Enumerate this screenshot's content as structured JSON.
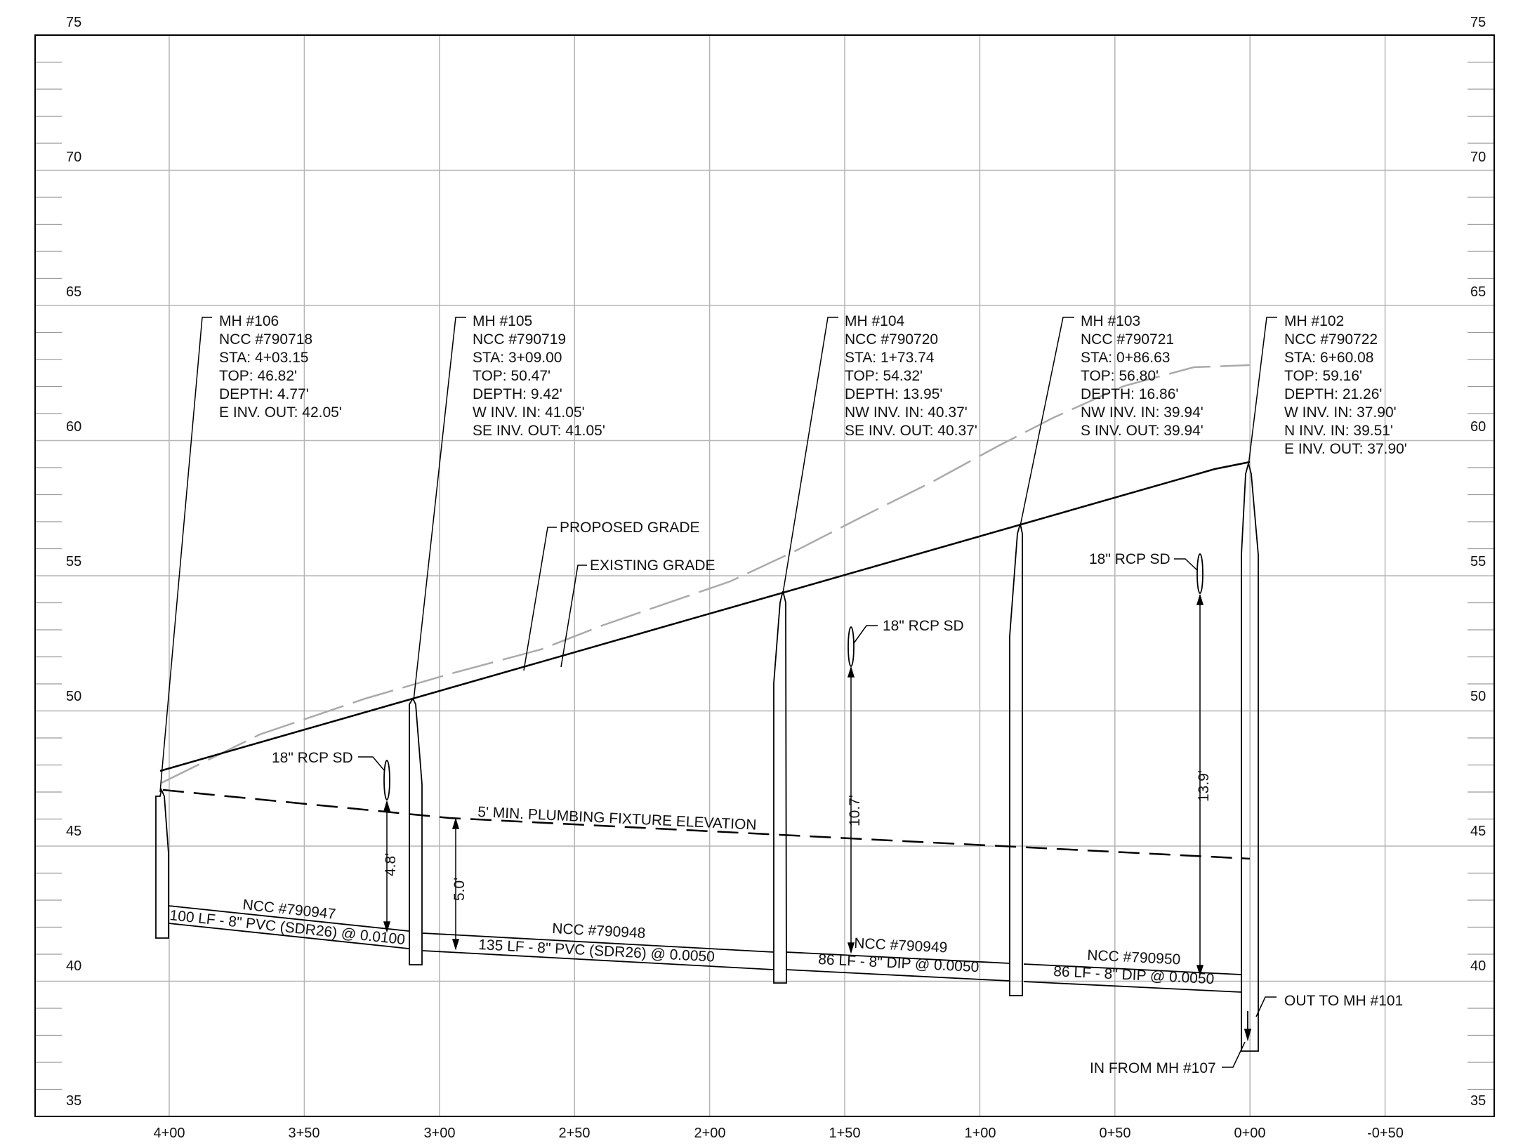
{
  "axes": {
    "y_labels": [
      "75",
      "70",
      "65",
      "60",
      "55",
      "50",
      "45",
      "40",
      "35"
    ],
    "y_range": [
      35,
      75
    ],
    "x_labels": [
      "4+00",
      "3+50",
      "3+00",
      "2+50",
      "2+00",
      "1+50",
      "1+00",
      "0+50",
      "0+00",
      "-0+50"
    ]
  },
  "colors": {
    "ink": "#000000",
    "grid": "#b5b5b5",
    "existing_grade": "#aaaaaa"
  },
  "manholes": [
    {
      "id": "mh106",
      "lines": [
        "MH #106",
        "NCC #790718",
        "STA: 4+03.15",
        "TOP: 46.82'",
        "DEPTH: 4.77'",
        "E INV. OUT: 42.05'"
      ]
    },
    {
      "id": "mh105",
      "lines": [
        "MH #105",
        "NCC #790719",
        "STA: 3+09.00",
        "TOP: 50.47'",
        "DEPTH: 9.42'",
        "W INV. IN: 41.05'",
        "SE INV. OUT: 41.05'"
      ]
    },
    {
      "id": "mh104",
      "lines": [
        "MH #104",
        "NCC #790720",
        "STA: 1+73.74",
        "TOP: 54.32'",
        "DEPTH: 13.95'",
        "NW INV. IN: 40.37'",
        "SE INV. OUT: 40.37'"
      ]
    },
    {
      "id": "mh103",
      "lines": [
        "MH #103",
        "NCC #790721",
        "STA: 0+86.63",
        "TOP: 56.80'",
        "DEPTH: 16.86'",
        "NW INV. IN: 39.94'",
        "S INV. OUT: 39.94'"
      ]
    },
    {
      "id": "mh102",
      "lines": [
        "MH #102",
        "NCC #790722",
        "STA: 6+60.08",
        "TOP: 59.16'",
        "DEPTH: 21.26'",
        "W INV. IN: 37.90'",
        "N INV. IN: 39.51'",
        "E INV. OUT: 37.90'"
      ]
    }
  ],
  "grade_labels": {
    "proposed": "PROPOSED GRADE",
    "existing": "EXISTING GRADE"
  },
  "plumbing_label": "5' MIN. PLUMBING FIXTURE ELEVATION",
  "storm_drains": [
    {
      "id": "sd1",
      "label": "18\" RCP SD"
    },
    {
      "id": "sd2",
      "label": "18\" RCP SD"
    },
    {
      "id": "sd3",
      "label": "18\" RCP SD"
    }
  ],
  "dimensions": [
    "4.8'",
    "5.0'",
    "10.7'",
    "13.9'"
  ],
  "pipes": [
    {
      "id": "p1",
      "ncc": "NCC #790947",
      "spec": "100 LF - 8\" PVC (SDR26) @ 0.0100"
    },
    {
      "id": "p2",
      "ncc": "NCC #790948",
      "spec": "135 LF - 8\" PVC (SDR26) @ 0.0050"
    },
    {
      "id": "p3",
      "ncc": "NCC #790949",
      "spec": "86 LF - 8\" DIP @ 0.0050"
    },
    {
      "id": "p4",
      "ncc": "NCC #790950",
      "spec": "86 LF - 8\" DIP @ 0.0050"
    }
  ],
  "callouts": {
    "out_to": "OUT TO MH #101",
    "in_from": "IN FROM MH #107"
  }
}
